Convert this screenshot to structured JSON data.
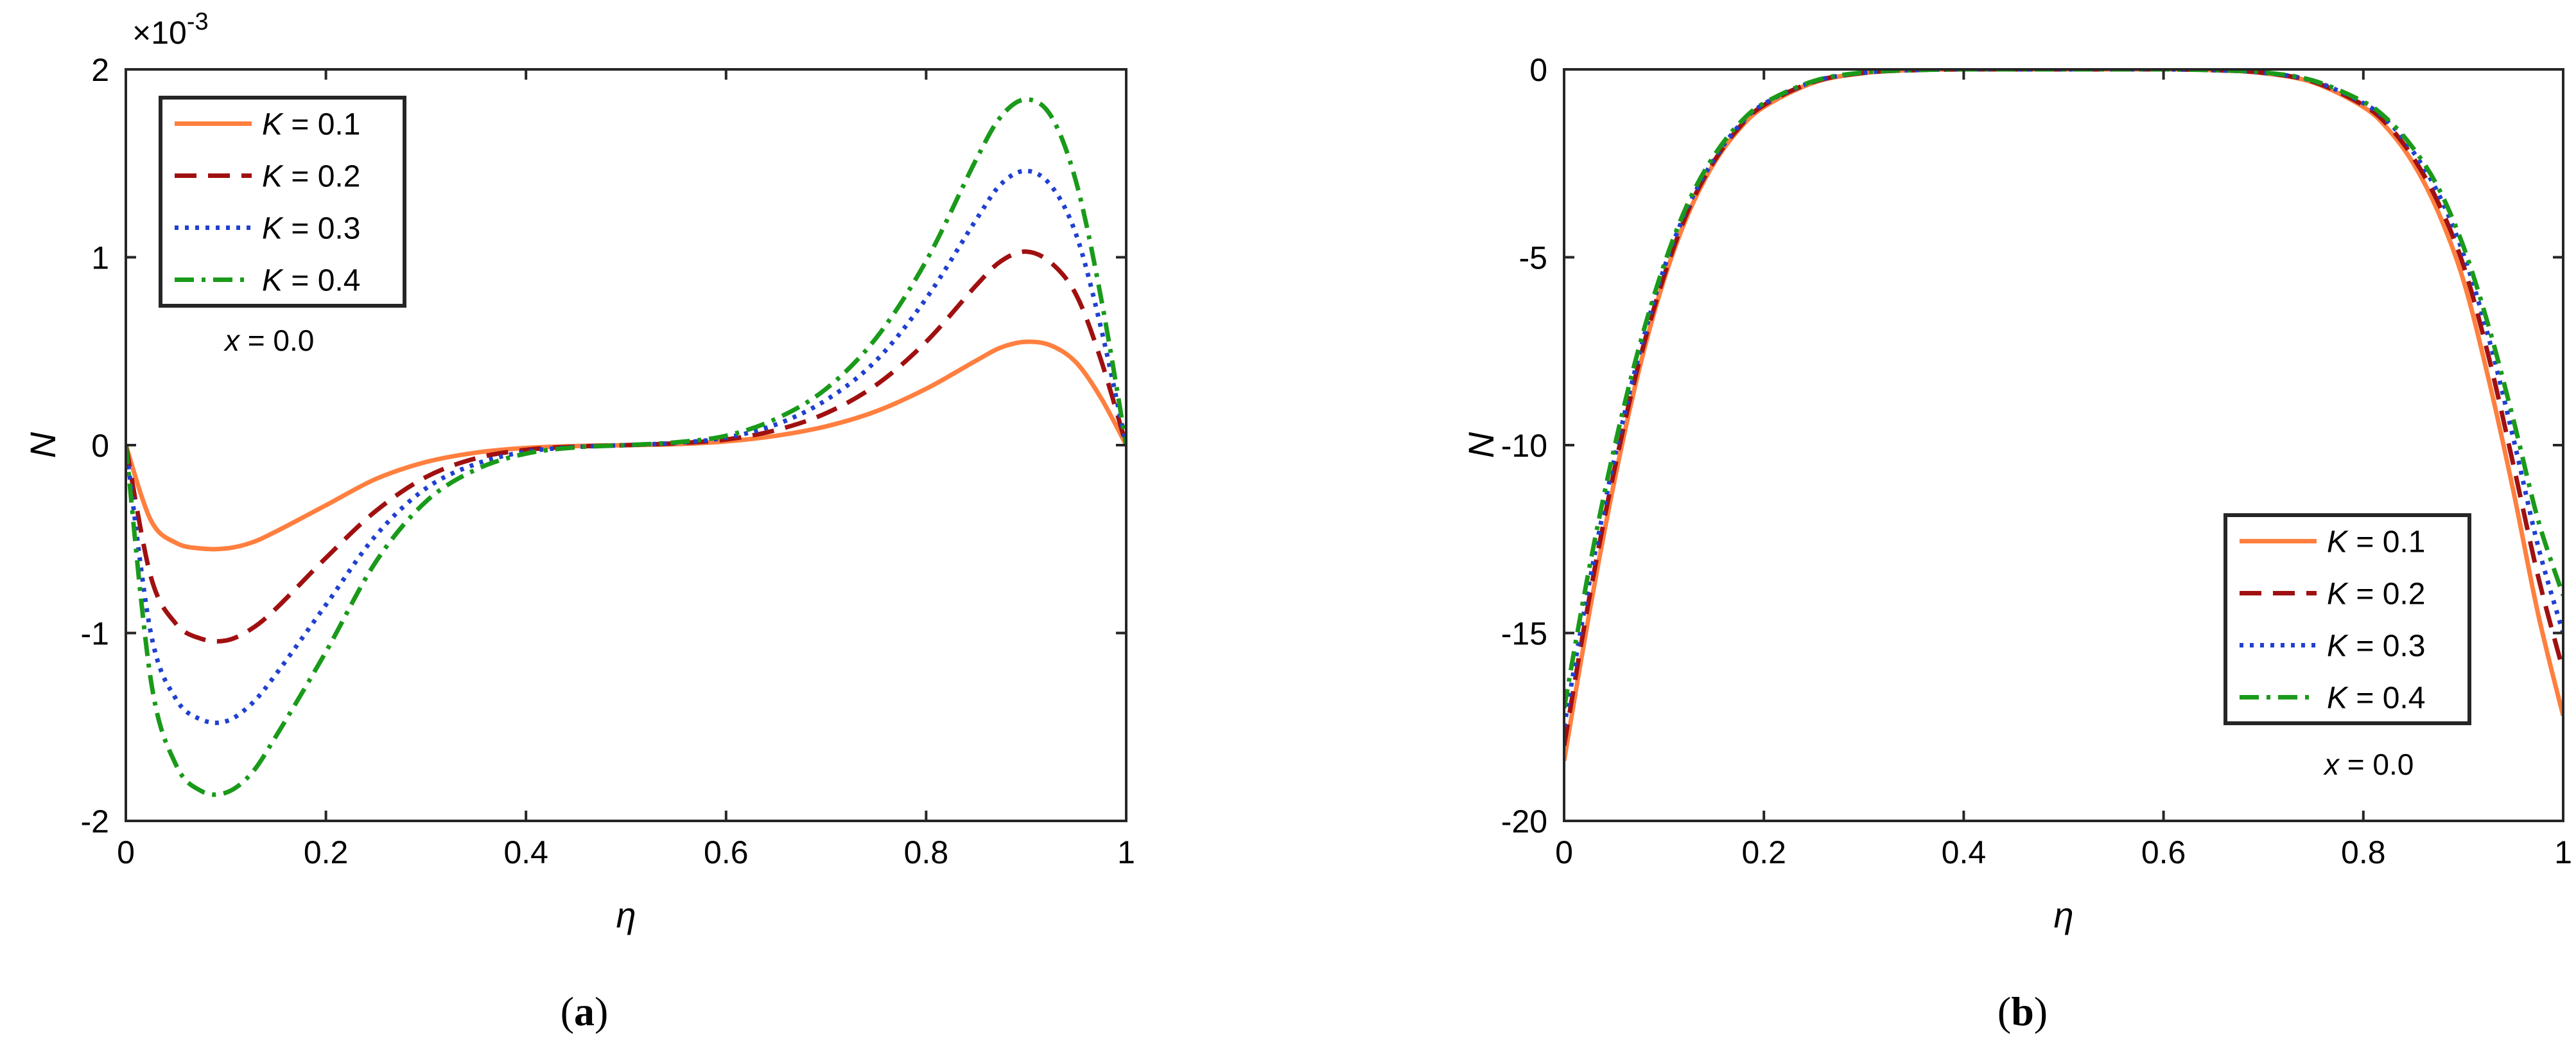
{
  "chart_data": [
    {
      "type": "line",
      "panel_label": "(a)",
      "panel_letter": "a",
      "xlabel": "η",
      "ylabel": "N",
      "scale_factor_label": "×10",
      "scale_factor_exponent": "-3",
      "xlim": [
        0,
        1
      ],
      "ylim": [
        -2,
        2
      ],
      "xticks": [
        0,
        0.2,
        0.4,
        0.6,
        0.8,
        1
      ],
      "xtick_labels": [
        "0",
        "0.2",
        "0.4",
        "0.6",
        "0.8",
        "1"
      ],
      "yticks": [
        -2,
        -1,
        0,
        1,
        2
      ],
      "ytick_labels": [
        "-2",
        "-1",
        "0",
        "1",
        "2"
      ],
      "legend_position": "top-left",
      "annotation": "x = 0.0",
      "x": [
        0,
        0.025,
        0.05,
        0.075,
        0.1,
        0.125,
        0.15,
        0.2,
        0.25,
        0.3,
        0.35,
        0.4,
        0.45,
        0.5,
        0.55,
        0.6,
        0.65,
        0.7,
        0.75,
        0.8,
        0.85,
        0.875,
        0.9,
        0.925,
        0.95,
        0.975,
        1
      ],
      "series": [
        {
          "name": "K = 0.1",
          "color": "#FF7F3F",
          "dash": "solid",
          "values": [
            0,
            -0.4,
            -0.52,
            -0.55,
            -0.55,
            -0.52,
            -0.46,
            -0.32,
            -0.18,
            -0.09,
            -0.04,
            -0.015,
            -0.005,
            0,
            0.005,
            0.02,
            0.05,
            0.1,
            0.18,
            0.3,
            0.45,
            0.52,
            0.55,
            0.53,
            0.44,
            0.25,
            0
          ]
        },
        {
          "name": "K = 0.2",
          "color": "#A01010",
          "dash": "dashed",
          "values": [
            0,
            -0.7,
            -0.95,
            -1.03,
            -1.04,
            -0.98,
            -0.87,
            -0.6,
            -0.35,
            -0.17,
            -0.07,
            -0.025,
            -0.008,
            0,
            0.01,
            0.03,
            0.08,
            0.17,
            0.32,
            0.55,
            0.85,
            0.98,
            1.03,
            0.97,
            0.8,
            0.45,
            0
          ]
        },
        {
          "name": "K = 0.3",
          "color": "#2040D0",
          "dash": "dotted",
          "values": [
            0,
            -1.0,
            -1.35,
            -1.46,
            -1.47,
            -1.38,
            -1.22,
            -0.85,
            -0.48,
            -0.23,
            -0.1,
            -0.035,
            -0.01,
            0,
            0.012,
            0.04,
            0.11,
            0.24,
            0.45,
            0.78,
            1.2,
            1.39,
            1.46,
            1.38,
            1.12,
            0.62,
            0
          ]
        },
        {
          "name": "K = 0.4",
          "color": "#1A9A1A",
          "dash": "dashdot",
          "values": [
            0,
            -1.25,
            -1.7,
            -1.84,
            -1.85,
            -1.75,
            -1.55,
            -1.1,
            -0.62,
            -0.3,
            -0.13,
            -0.045,
            -0.012,
            0,
            0.015,
            0.05,
            0.14,
            0.3,
            0.57,
            0.98,
            1.52,
            1.75,
            1.84,
            1.75,
            1.4,
            0.78,
            0
          ]
        }
      ]
    },
    {
      "type": "line",
      "panel_label": "(b)",
      "panel_letter": "b",
      "xlabel": "η",
      "ylabel": "N",
      "xlim": [
        0,
        1
      ],
      "ylim": [
        -20,
        0
      ],
      "xticks": [
        0,
        0.2,
        0.4,
        0.6,
        0.8,
        1
      ],
      "xtick_labels": [
        "0",
        "0.2",
        "0.4",
        "0.6",
        "0.8",
        "1"
      ],
      "yticks": [
        -20,
        -15,
        -10,
        -5,
        0
      ],
      "ytick_labels": [
        "-20",
        "-15",
        "-10",
        "-5",
        "0"
      ],
      "legend_position": "bottom-right",
      "annotation": "x = 0.0",
      "x": [
        0,
        0.025,
        0.05,
        0.075,
        0.1,
        0.125,
        0.15,
        0.175,
        0.2,
        0.25,
        0.3,
        0.35,
        0.4,
        0.5,
        0.6,
        0.65,
        0.7,
        0.75,
        0.8,
        0.825,
        0.85,
        0.875,
        0.9,
        0.925,
        0.95,
        0.975,
        1
      ],
      "series": [
        {
          "name": "K = 0.1",
          "color": "#FF7F3F",
          "dash": "solid",
          "values": [
            -18.4,
            -14.5,
            -11,
            -8,
            -5.6,
            -3.8,
            -2.5,
            -1.6,
            -1.0,
            -0.35,
            -0.1,
            -0.02,
            0,
            0,
            0,
            -0.02,
            -0.1,
            -0.35,
            -1.0,
            -1.6,
            -2.5,
            -3.8,
            -5.6,
            -8.2,
            -11.2,
            -14.5,
            -17.2
          ]
        },
        {
          "name": "K = 0.2",
          "color": "#A01010",
          "dash": "dashed",
          "values": [
            -18.0,
            -14.1,
            -10.7,
            -7.8,
            -5.5,
            -3.7,
            -2.45,
            -1.55,
            -0.95,
            -0.33,
            -0.09,
            -0.02,
            0,
            0,
            0,
            -0.02,
            -0.09,
            -0.33,
            -0.95,
            -1.5,
            -2.35,
            -3.55,
            -5.2,
            -7.6,
            -10.5,
            -13.5,
            -16.0
          ]
        },
        {
          "name": "K = 0.3",
          "color": "#2040D0",
          "dash": "dotted",
          "values": [
            -17.5,
            -13.7,
            -10.4,
            -7.6,
            -5.3,
            -3.6,
            -2.4,
            -1.5,
            -0.92,
            -0.32,
            -0.09,
            -0.02,
            0,
            0,
            0,
            -0.02,
            -0.09,
            -0.31,
            -0.9,
            -1.4,
            -2.2,
            -3.3,
            -4.9,
            -7.1,
            -9.8,
            -12.7,
            -15.0
          ]
        },
        {
          "name": "K = 0.4",
          "color": "#1A9A1A",
          "dash": "dashdot",
          "values": [
            -17.0,
            -13.3,
            -10.1,
            -7.4,
            -5.2,
            -3.5,
            -2.3,
            -1.45,
            -0.9,
            -0.31,
            -0.08,
            -0.02,
            0,
            0,
            0,
            -0.02,
            -0.08,
            -0.3,
            -0.86,
            -1.35,
            -2.1,
            -3.15,
            -4.7,
            -6.8,
            -9.3,
            -12.0,
            -14.0
          ]
        }
      ]
    }
  ]
}
